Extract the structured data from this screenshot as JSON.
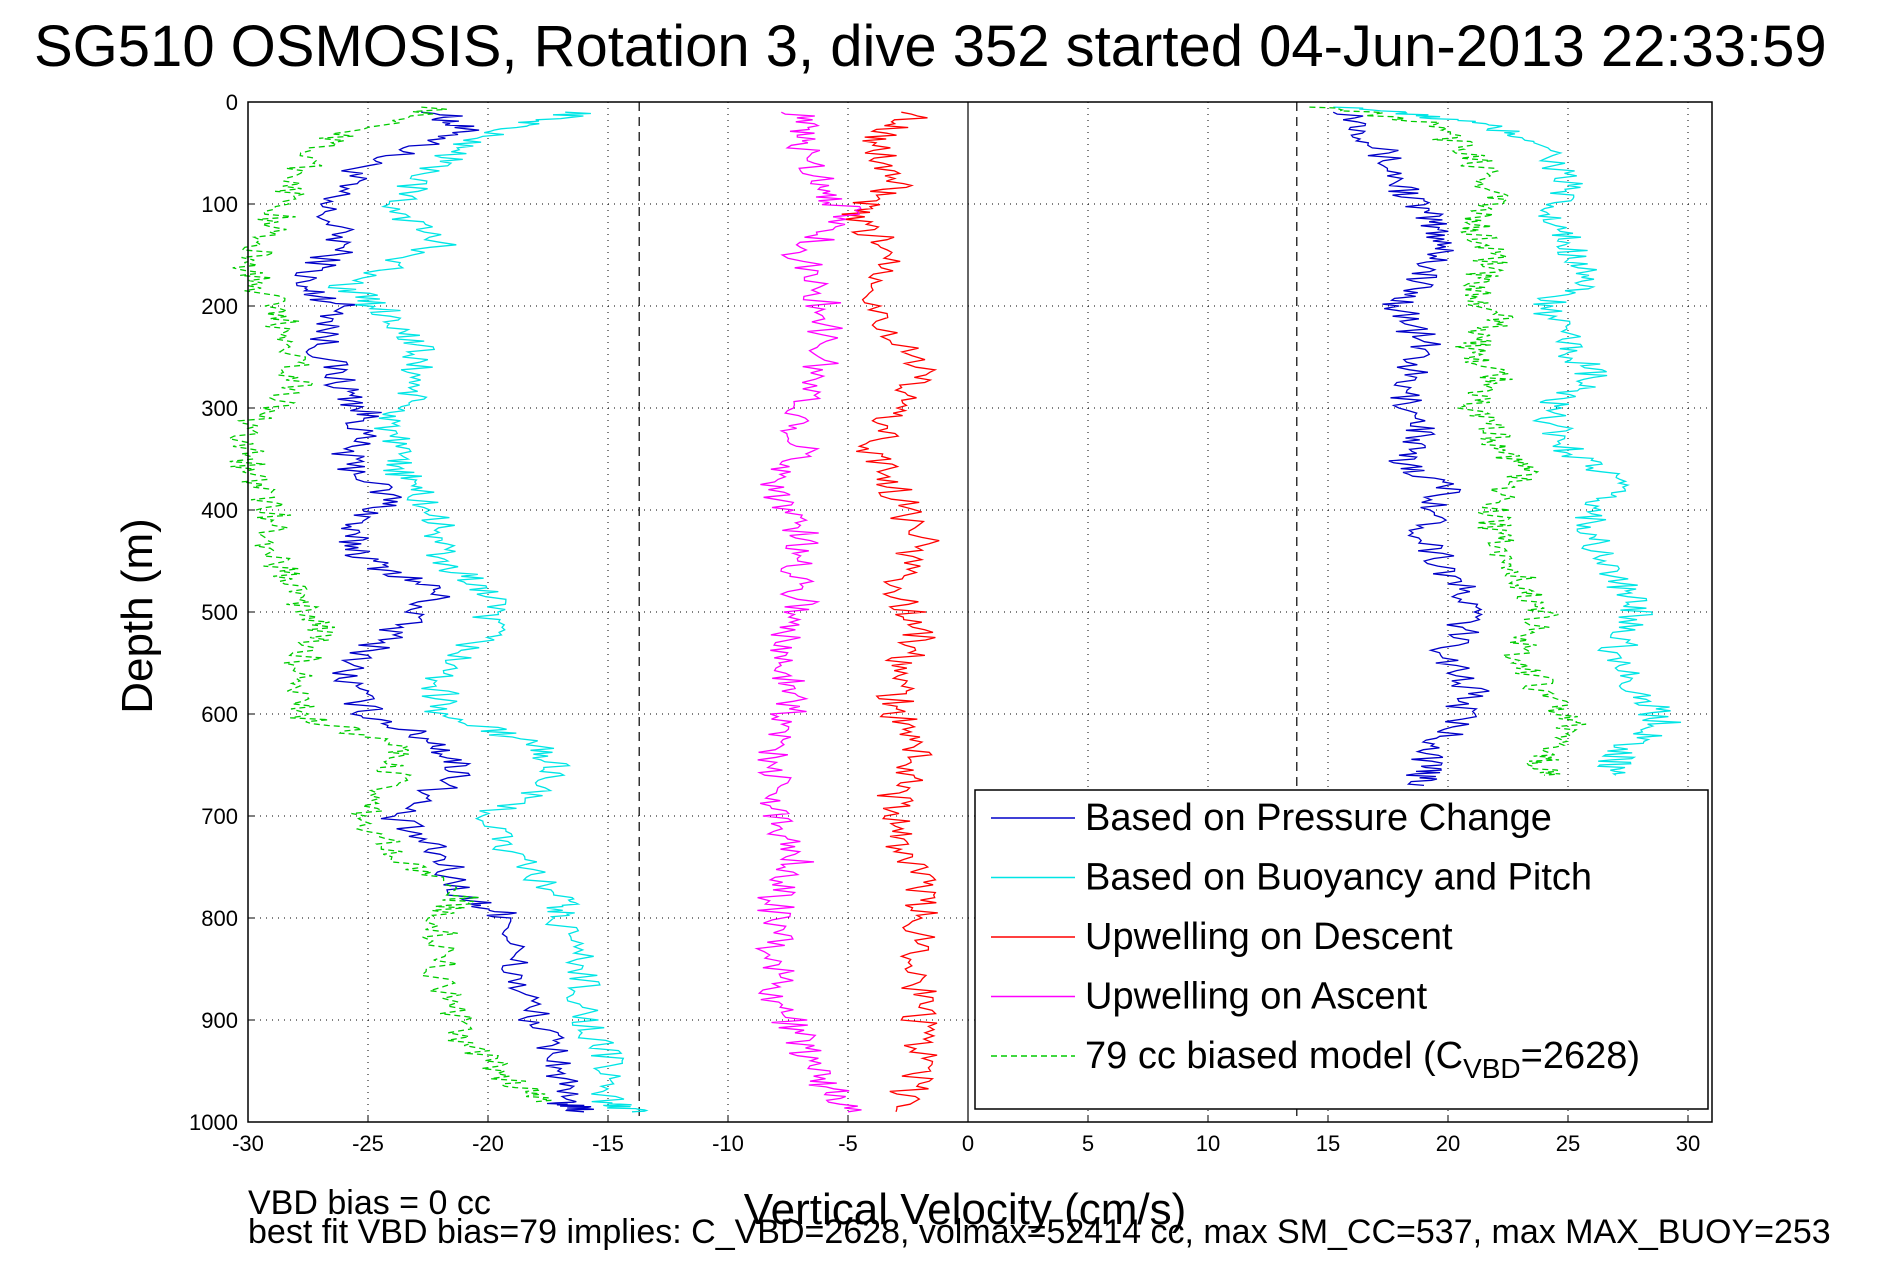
{
  "title": "SG510 OSMOSIS, Rotation 3, dive 352 started 04-Jun-2013 22:33:59",
  "footer": {
    "line1": "VBD bias = 0 cc",
    "line2": "best fit VBD bias=79 implies: C_VBD=2628, volmax=52414 cc, max SM_CC=537, max MAX_BUOY=253"
  },
  "chart_data": {
    "type": "line",
    "xlabel": "Vertical Velocity (cm/s)",
    "ylabel": "Depth (m)",
    "xlim": [
      -30,
      31
    ],
    "ylim": [
      0,
      1000
    ],
    "y_reversed": true,
    "grid": true,
    "xticks": [
      "-30",
      "-25",
      "-20",
      "-15",
      "-10",
      "-5",
      "0",
      "5",
      "10",
      "15",
      "20",
      "25",
      "30"
    ],
    "yticks": [
      "0",
      "100",
      "200",
      "300",
      "400",
      "500",
      "600",
      "700",
      "800",
      "900",
      "1000"
    ],
    "reference_lines": [
      {
        "x": -13.7,
        "style": "dashed"
      },
      {
        "x": 13.7,
        "style": "dashed"
      },
      {
        "x": 0,
        "style": "solid"
      }
    ],
    "legend_position": "bottom-right",
    "legend": [
      {
        "label": "Based on Pressure Change",
        "color": "#0000c8",
        "style": "solid"
      },
      {
        "label": "Based on Buoyancy and Pitch",
        "color": "#00e5e5",
        "style": "solid"
      },
      {
        "label": "Upwelling on Descent",
        "color": "#ff0000",
        "style": "solid"
      },
      {
        "label": "Upwelling on Ascent",
        "color": "#ff00ff",
        "style": "solid"
      },
      {
        "label_main": "79 cc biased model (C",
        "label_sub": "VBD",
        "label_tail": "=2628)",
        "color": "#00cc00",
        "style": "dashed"
      }
    ],
    "series": [
      {
        "key": "pressure_descent",
        "color": "#0000c8",
        "dash": false,
        "points": [
          [
            -22,
            10
          ],
          [
            -21,
            30
          ],
          [
            -25,
            60
          ],
          [
            -27,
            100
          ],
          [
            -26,
            140
          ],
          [
            -28,
            180
          ],
          [
            -26,
            200
          ],
          [
            -27,
            240
          ],
          [
            -26,
            280
          ],
          [
            -25,
            310
          ],
          [
            -26,
            350
          ],
          [
            -24,
            390
          ],
          [
            -26,
            420
          ],
          [
            -25,
            450
          ],
          [
            -22,
            480
          ],
          [
            -24,
            520
          ],
          [
            -26,
            560
          ],
          [
            -25,
            600
          ],
          [
            -22,
            630
          ],
          [
            -21,
            660
          ],
          [
            -24,
            700
          ],
          [
            -22,
            740
          ],
          [
            -21,
            780
          ],
          [
            -19,
            800
          ],
          [
            -19,
            850
          ],
          [
            -18,
            900
          ],
          [
            -17,
            940
          ],
          [
            -17,
            980
          ],
          [
            -16,
            990
          ]
        ]
      },
      {
        "key": "pressure_ascent",
        "color": "#0000c8",
        "dash": false,
        "points": [
          [
            16,
            10
          ],
          [
            17,
            40
          ],
          [
            18,
            80
          ],
          [
            19,
            110
          ],
          [
            20,
            140
          ],
          [
            19,
            170
          ],
          [
            18,
            200
          ],
          [
            19,
            240
          ],
          [
            18,
            280
          ],
          [
            19,
            320
          ],
          [
            18,
            350
          ],
          [
            20,
            380
          ],
          [
            19,
            420
          ],
          [
            20,
            460
          ],
          [
            21,
            500
          ],
          [
            20,
            540
          ],
          [
            21,
            580
          ],
          [
            20,
            620
          ],
          [
            19,
            650
          ],
          [
            19,
            670
          ]
        ]
      },
      {
        "key": "buoyancy_descent",
        "color": "#00e5e5",
        "dash": false,
        "points": [
          [
            -16,
            10
          ],
          [
            -20,
            30
          ],
          [
            -22,
            60
          ],
          [
            -24,
            100
          ],
          [
            -22,
            140
          ],
          [
            -26,
            180
          ],
          [
            -24,
            210
          ],
          [
            -23,
            240
          ],
          [
            -23,
            280
          ],
          [
            -24,
            310
          ],
          [
            -24,
            350
          ],
          [
            -23,
            380
          ],
          [
            -22,
            420
          ],
          [
            -22,
            450
          ],
          [
            -20,
            480
          ],
          [
            -20,
            520
          ],
          [
            -22,
            560
          ],
          [
            -22,
            600
          ],
          [
            -18,
            630
          ],
          [
            -17,
            660
          ],
          [
            -20,
            700
          ],
          [
            -19,
            740
          ],
          [
            -17,
            780
          ],
          [
            -17,
            800
          ],
          [
            -16,
            850
          ],
          [
            -16,
            900
          ],
          [
            -15,
            940
          ],
          [
            -15,
            980
          ],
          [
            -14,
            990
          ]
        ]
      },
      {
        "key": "buoyancy_ascent",
        "color": "#00e5e5",
        "dash": false,
        "points": [
          [
            16,
            5
          ],
          [
            21,
            20
          ],
          [
            24,
            40
          ],
          [
            25,
            80
          ],
          [
            24,
            110
          ],
          [
            25,
            140
          ],
          [
            26,
            170
          ],
          [
            24,
            200
          ],
          [
            25,
            240
          ],
          [
            26,
            270
          ],
          [
            24,
            300
          ],
          [
            25,
            340
          ],
          [
            27,
            370
          ],
          [
            26,
            400
          ],
          [
            26,
            430
          ],
          [
            27,
            470
          ],
          [
            28,
            500
          ],
          [
            27,
            540
          ],
          [
            28,
            580
          ],
          [
            29,
            610
          ],
          [
            27,
            640
          ],
          [
            27,
            660
          ]
        ]
      },
      {
        "key": "upwell_descent",
        "color": "#ff0000",
        "dash": false,
        "points": [
          [
            -2,
            10
          ],
          [
            -4,
            40
          ],
          [
            -3,
            80
          ],
          [
            -5,
            110
          ],
          [
            -3,
            150
          ],
          [
            -4,
            200
          ],
          [
            -2,
            260
          ],
          [
            -3,
            300
          ],
          [
            -4,
            340
          ],
          [
            -3,
            380
          ],
          [
            -2,
            430
          ],
          [
            -3,
            480
          ],
          [
            -2,
            520
          ],
          [
            -3,
            560
          ],
          [
            -3,
            600
          ],
          [
            -2,
            640
          ],
          [
            -3,
            680
          ],
          [
            -3,
            720
          ],
          [
            -2,
            760
          ],
          [
            -2,
            800
          ],
          [
            -2,
            850
          ],
          [
            -2,
            900
          ],
          [
            -2,
            950
          ],
          [
            -3,
            990
          ]
        ]
      },
      {
        "key": "upwell_ascent",
        "color": "#ff00ff",
        "dash": false,
        "points": [
          [
            -7,
            10
          ],
          [
            -7,
            40
          ],
          [
            -6,
            80
          ],
          [
            -5,
            110
          ],
          [
            -7,
            150
          ],
          [
            -6,
            200
          ],
          [
            -6,
            250
          ],
          [
            -7,
            300
          ],
          [
            -7,
            340
          ],
          [
            -8,
            380
          ],
          [
            -7,
            420
          ],
          [
            -7,
            460
          ],
          [
            -7,
            500
          ],
          [
            -8,
            540
          ],
          [
            -7,
            580
          ],
          [
            -8,
            620
          ],
          [
            -8,
            660
          ],
          [
            -8,
            700
          ],
          [
            -7,
            740
          ],
          [
            -8,
            780
          ],
          [
            -8,
            830
          ],
          [
            -8,
            880
          ],
          [
            -7,
            920
          ],
          [
            -6,
            960
          ],
          [
            -5,
            990
          ]
        ]
      },
      {
        "key": "model_descent",
        "color": "#00cc00",
        "dash": true,
        "points": [
          [
            -22,
            5
          ],
          [
            -27,
            40
          ],
          [
            -28,
            80
          ],
          [
            -29,
            120
          ],
          [
            -30,
            160
          ],
          [
            -29,
            200
          ],
          [
            -28,
            240
          ],
          [
            -28,
            280
          ],
          [
            -30,
            320
          ],
          [
            -30,
            360
          ],
          [
            -29,
            400
          ],
          [
            -29,
            440
          ],
          [
            -28,
            480
          ],
          [
            -27,
            520
          ],
          [
            -28,
            560
          ],
          [
            -28,
            600
          ],
          [
            -24,
            630
          ],
          [
            -24,
            660
          ],
          [
            -25,
            700
          ],
          [
            -24,
            740
          ],
          [
            -21,
            780
          ],
          [
            -22,
            800
          ],
          [
            -22,
            860
          ],
          [
            -21,
            920
          ],
          [
            -19,
            960
          ],
          [
            -18,
            980
          ]
        ]
      },
      {
        "key": "model_ascent",
        "color": "#00cc00",
        "dash": true,
        "points": [
          [
            15,
            5
          ],
          [
            19,
            20
          ],
          [
            21,
            50
          ],
          [
            22,
            90
          ],
          [
            21,
            120
          ],
          [
            22,
            150
          ],
          [
            21,
            180
          ],
          [
            22,
            210
          ],
          [
            21,
            240
          ],
          [
            22,
            270
          ],
          [
            21,
            300
          ],
          [
            22,
            330
          ],
          [
            23,
            360
          ],
          [
            22,
            400
          ],
          [
            22,
            440
          ],
          [
            23,
            470
          ],
          [
            24,
            500
          ],
          [
            23,
            540
          ],
          [
            24,
            580
          ],
          [
            25,
            610
          ],
          [
            24,
            640
          ],
          [
            24,
            660
          ]
        ]
      }
    ]
  }
}
